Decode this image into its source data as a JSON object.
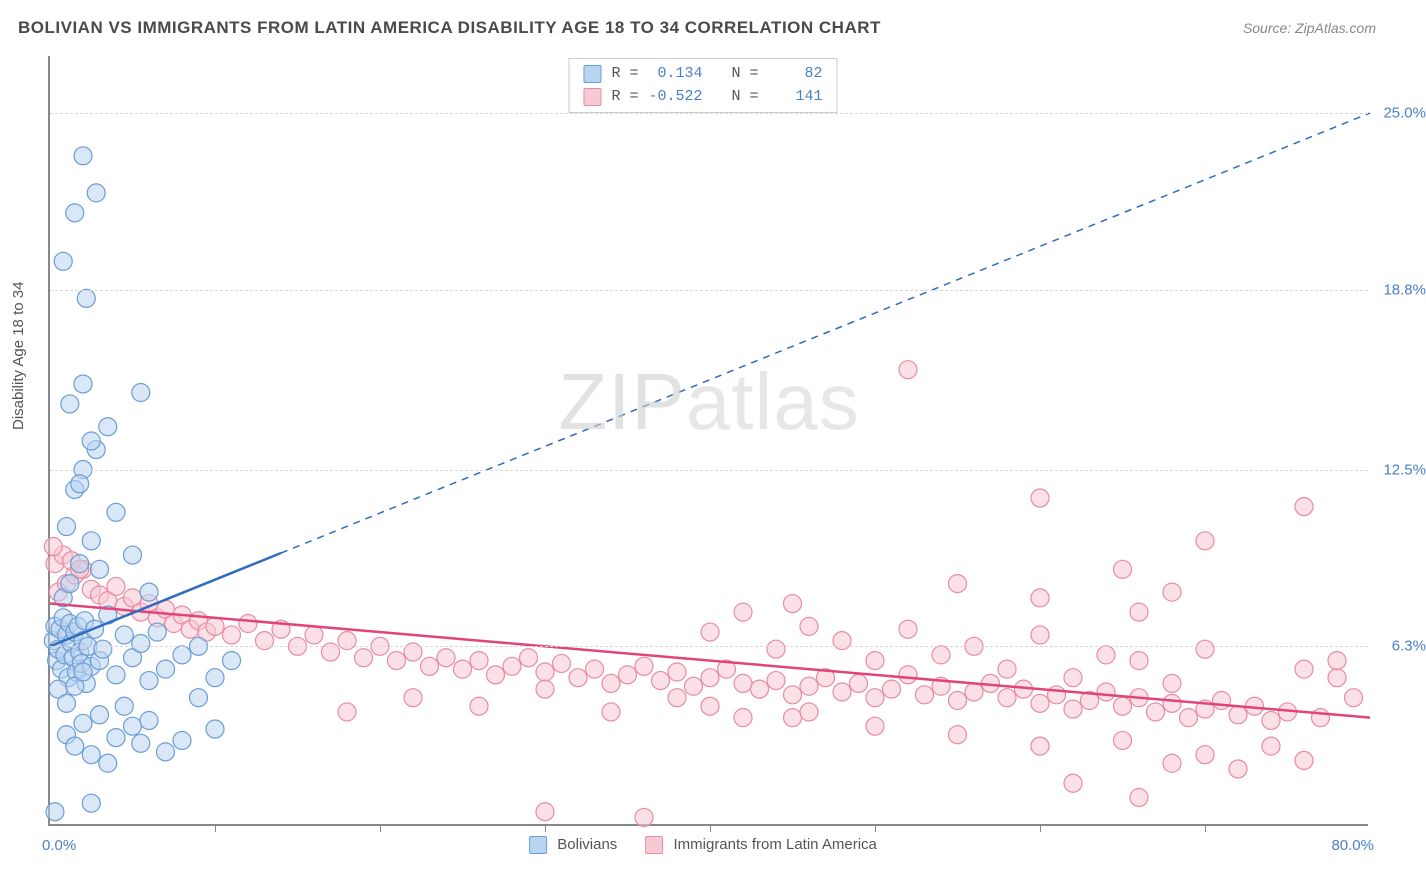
{
  "header": {
    "title": "BOLIVIAN VS IMMIGRANTS FROM LATIN AMERICA DISABILITY AGE 18 TO 34 CORRELATION CHART",
    "source": "Source: ZipAtlas.com"
  },
  "axes": {
    "y_label": "Disability Age 18 to 34",
    "x_min_label": "0.0%",
    "x_max_label": "80.0%",
    "xlim": [
      0,
      80
    ],
    "ylim": [
      0,
      27
    ],
    "y_ticks": [
      {
        "value": 6.3,
        "label": "6.3%"
      },
      {
        "value": 12.5,
        "label": "12.5%"
      },
      {
        "value": 18.8,
        "label": "18.8%"
      },
      {
        "value": 25.0,
        "label": "25.0%"
      }
    ],
    "x_tick_positions": [
      10,
      20,
      30,
      40,
      50,
      60,
      70
    ],
    "gridline_color": "#d8d8d8",
    "axis_color": "#888888",
    "tick_label_color": "#4a7ec9",
    "axis_label_fontsize": 15
  },
  "watermark": {
    "text1": "ZIP",
    "text2": "atlas"
  },
  "series": {
    "bolivians": {
      "label": "Bolivians",
      "fill_color": "#b9d4f0",
      "stroke_color": "#6a9dd6",
      "line_color": "#2f6bc0",
      "marker_radius": 9,
      "fill_opacity": 0.55,
      "R": "0.134",
      "N": "82",
      "regression": {
        "x1": 0,
        "y1": 6.3,
        "x2": 80,
        "y2": 25.0,
        "solid_until_x": 14
      },
      "points": [
        [
          0.2,
          6.5
        ],
        [
          0.3,
          7.0
        ],
        [
          0.4,
          5.8
        ],
        [
          0.5,
          6.2
        ],
        [
          0.6,
          6.9
        ],
        [
          0.7,
          5.5
        ],
        [
          0.8,
          7.3
        ],
        [
          0.9,
          6.0
        ],
        [
          1.0,
          6.7
        ],
        [
          1.1,
          5.2
        ],
        [
          1.2,
          7.1
        ],
        [
          1.3,
          6.4
        ],
        [
          1.4,
          5.9
        ],
        [
          1.5,
          6.8
        ],
        [
          1.6,
          5.4
        ],
        [
          1.7,
          7.0
        ],
        [
          1.8,
          6.1
        ],
        [
          1.9,
          5.7
        ],
        [
          2.0,
          6.5
        ],
        [
          2.1,
          7.2
        ],
        [
          2.2,
          5.0
        ],
        [
          2.3,
          6.3
        ],
        [
          2.5,
          5.6
        ],
        [
          2.7,
          6.9
        ],
        [
          3.0,
          5.8
        ],
        [
          3.2,
          6.2
        ],
        [
          3.5,
          7.4
        ],
        [
          4.0,
          5.3
        ],
        [
          4.5,
          6.7
        ],
        [
          5.0,
          5.9
        ],
        [
          5.5,
          6.4
        ],
        [
          6.0,
          5.1
        ],
        [
          6.5,
          6.8
        ],
        [
          7.0,
          5.5
        ],
        [
          8.0,
          6.0
        ],
        [
          9.0,
          6.3
        ],
        [
          10.0,
          3.4
        ],
        [
          11.0,
          5.8
        ],
        [
          1.0,
          3.2
        ],
        [
          1.5,
          2.8
        ],
        [
          2.0,
          3.6
        ],
        [
          2.5,
          2.5
        ],
        [
          3.0,
          3.9
        ],
        [
          3.5,
          2.2
        ],
        [
          4.0,
          3.1
        ],
        [
          4.5,
          4.2
        ],
        [
          5.0,
          3.5
        ],
        [
          5.5,
          2.9
        ],
        [
          6.0,
          3.7
        ],
        [
          7.0,
          2.6
        ],
        [
          8.0,
          3.0
        ],
        [
          9.0,
          4.5
        ],
        [
          10.0,
          5.2
        ],
        [
          0.5,
          4.8
        ],
        [
          1.0,
          4.3
        ],
        [
          1.5,
          4.9
        ],
        [
          2.0,
          5.4
        ],
        [
          0.8,
          8.0
        ],
        [
          1.2,
          8.5
        ],
        [
          1.8,
          9.2
        ],
        [
          2.5,
          10.0
        ],
        [
          1.0,
          10.5
        ],
        [
          1.5,
          11.8
        ],
        [
          2.0,
          12.5
        ],
        [
          2.8,
          13.2
        ],
        [
          3.5,
          14.0
        ],
        [
          1.2,
          14.8
        ],
        [
          2.0,
          15.5
        ],
        [
          4.0,
          11.0
        ],
        [
          5.0,
          9.5
        ],
        [
          6.0,
          8.2
        ],
        [
          3.0,
          9.0
        ],
        [
          1.8,
          12.0
        ],
        [
          2.5,
          13.5
        ],
        [
          5.5,
          15.2
        ],
        [
          2.2,
          18.5
        ],
        [
          0.8,
          19.8
        ],
        [
          1.5,
          21.5
        ],
        [
          2.8,
          22.2
        ],
        [
          2.0,
          23.5
        ],
        [
          0.3,
          0.5
        ],
        [
          2.5,
          0.8
        ]
      ]
    },
    "immigrants": {
      "label": "Immigrants from Latin America",
      "fill_color": "#f7c9d4",
      "stroke_color": "#e88ba3",
      "line_color": "#e0457a",
      "marker_radius": 9,
      "fill_opacity": 0.55,
      "R": "-0.522",
      "N": "141",
      "regression": {
        "x1": 0,
        "y1": 7.8,
        "x2": 80,
        "y2": 3.8,
        "solid_until_x": 80
      },
      "points": [
        [
          0.5,
          8.2
        ],
        [
          1.0,
          8.5
        ],
        [
          1.5,
          8.8
        ],
        [
          2.0,
          9.0
        ],
        [
          2.5,
          8.3
        ],
        [
          3.0,
          8.1
        ],
        [
          3.5,
          7.9
        ],
        [
          4.0,
          8.4
        ],
        [
          4.5,
          7.7
        ],
        [
          5.0,
          8.0
        ],
        [
          5.5,
          7.5
        ],
        [
          6.0,
          7.8
        ],
        [
          6.5,
          7.3
        ],
        [
          7.0,
          7.6
        ],
        [
          7.5,
          7.1
        ],
        [
          8.0,
          7.4
        ],
        [
          8.5,
          6.9
        ],
        [
          9.0,
          7.2
        ],
        [
          9.5,
          6.8
        ],
        [
          10.0,
          7.0
        ],
        [
          11.0,
          6.7
        ],
        [
          12.0,
          7.1
        ],
        [
          13.0,
          6.5
        ],
        [
          14.0,
          6.9
        ],
        [
          15.0,
          6.3
        ],
        [
          16.0,
          6.7
        ],
        [
          17.0,
          6.1
        ],
        [
          18.0,
          6.5
        ],
        [
          19.0,
          5.9
        ],
        [
          20.0,
          6.3
        ],
        [
          21.0,
          5.8
        ],
        [
          22.0,
          6.1
        ],
        [
          23.0,
          5.6
        ],
        [
          24.0,
          5.9
        ],
        [
          25.0,
          5.5
        ],
        [
          26.0,
          5.8
        ],
        [
          27.0,
          5.3
        ],
        [
          28.0,
          5.6
        ],
        [
          29.0,
          5.9
        ],
        [
          30.0,
          5.4
        ],
        [
          31.0,
          5.7
        ],
        [
          32.0,
          5.2
        ],
        [
          33.0,
          5.5
        ],
        [
          34.0,
          5.0
        ],
        [
          35.0,
          5.3
        ],
        [
          36.0,
          5.6
        ],
        [
          37.0,
          5.1
        ],
        [
          38.0,
          5.4
        ],
        [
          39.0,
          4.9
        ],
        [
          40.0,
          5.2
        ],
        [
          41.0,
          5.5
        ],
        [
          42.0,
          5.0
        ],
        [
          43.0,
          4.8
        ],
        [
          44.0,
          5.1
        ],
        [
          45.0,
          4.6
        ],
        [
          46.0,
          4.9
        ],
        [
          47.0,
          5.2
        ],
        [
          48.0,
          4.7
        ],
        [
          49.0,
          5.0
        ],
        [
          50.0,
          4.5
        ],
        [
          51.0,
          4.8
        ],
        [
          52.0,
          5.3
        ],
        [
          53.0,
          4.6
        ],
        [
          54.0,
          4.9
        ],
        [
          55.0,
          4.4
        ],
        [
          56.0,
          4.7
        ],
        [
          57.0,
          5.0
        ],
        [
          58.0,
          4.5
        ],
        [
          59.0,
          4.8
        ],
        [
          60.0,
          4.3
        ],
        [
          61.0,
          4.6
        ],
        [
          62.0,
          4.1
        ],
        [
          63.0,
          4.4
        ],
        [
          64.0,
          4.7
        ],
        [
          65.0,
          4.2
        ],
        [
          66.0,
          4.5
        ],
        [
          67.0,
          4.0
        ],
        [
          68.0,
          4.3
        ],
        [
          69.0,
          3.8
        ],
        [
          70.0,
          4.1
        ],
        [
          71.0,
          4.4
        ],
        [
          72.0,
          3.9
        ],
        [
          73.0,
          4.2
        ],
        [
          74.0,
          3.7
        ],
        [
          75.0,
          4.0
        ],
        [
          76.0,
          5.5
        ],
        [
          77.0,
          3.8
        ],
        [
          78.0,
          5.2
        ],
        [
          79.0,
          4.5
        ],
        [
          0.3,
          9.2
        ],
        [
          0.8,
          9.5
        ],
        [
          1.3,
          9.3
        ],
        [
          1.8,
          9.0
        ],
        [
          0.2,
          9.8
        ],
        [
          40.0,
          6.8
        ],
        [
          42.0,
          7.5
        ],
        [
          44.0,
          6.2
        ],
        [
          46.0,
          7.0
        ],
        [
          48.0,
          6.5
        ],
        [
          50.0,
          5.8
        ],
        [
          52.0,
          6.9
        ],
        [
          54.0,
          6.0
        ],
        [
          56.0,
          6.3
        ],
        [
          58.0,
          5.5
        ],
        [
          60.0,
          6.7
        ],
        [
          62.0,
          5.2
        ],
        [
          64.0,
          6.0
        ],
        [
          66.0,
          5.8
        ],
        [
          68.0,
          5.0
        ],
        [
          70.0,
          6.2
        ],
        [
          45.0,
          7.8
        ],
        [
          55.0,
          8.5
        ],
        [
          60.0,
          8.0
        ],
        [
          65.0,
          9.0
        ],
        [
          68.0,
          8.2
        ],
        [
          52.0,
          16.0
        ],
        [
          60.0,
          11.5
        ],
        [
          66.0,
          7.5
        ],
        [
          70.0,
          10.0
        ],
        [
          76.0,
          11.2
        ],
        [
          78.0,
          5.8
        ],
        [
          40.0,
          4.2
        ],
        [
          45.0,
          3.8
        ],
        [
          50.0,
          3.5
        ],
        [
          55.0,
          3.2
        ],
        [
          60.0,
          2.8
        ],
        [
          62.0,
          1.5
        ],
        [
          65.0,
          3.0
        ],
        [
          66.0,
          1.0
        ],
        [
          68.0,
          2.2
        ],
        [
          70.0,
          2.5
        ],
        [
          72.0,
          2.0
        ],
        [
          74.0,
          2.8
        ],
        [
          76.0,
          2.3
        ],
        [
          18.0,
          4.0
        ],
        [
          22.0,
          4.5
        ],
        [
          26.0,
          4.2
        ],
        [
          30.0,
          4.8
        ],
        [
          34.0,
          4.0
        ],
        [
          38.0,
          4.5
        ],
        [
          42.0,
          3.8
        ],
        [
          46.0,
          4.0
        ],
        [
          30.0,
          0.5
        ],
        [
          36.0,
          0.3
        ]
      ]
    }
  },
  "stat_box": {
    "R_label": "R =",
    "N_label": "N ="
  },
  "background_color": "#ffffff"
}
